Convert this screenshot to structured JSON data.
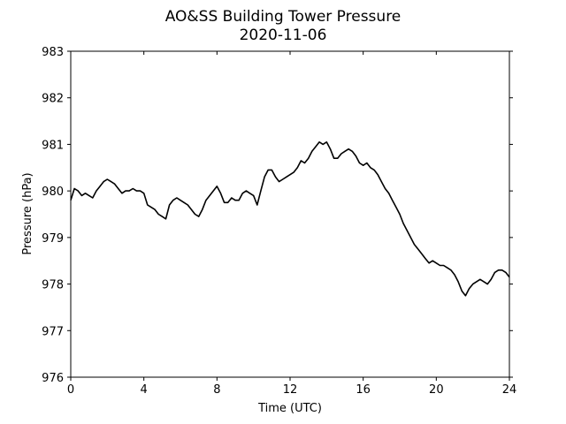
{
  "chart_data": {
    "type": "line",
    "title": "AO&SS Building Tower Pressure",
    "subtitle": "2020-11-06",
    "xlabel": "Time (UTC)",
    "ylabel": "Pressure (hPa)",
    "xlim": [
      0,
      24
    ],
    "ylim": [
      976,
      983
    ],
    "xticks": [
      0,
      4,
      8,
      12,
      16,
      20,
      24
    ],
    "yticks": [
      976,
      977,
      978,
      979,
      980,
      981,
      982,
      983
    ],
    "grid": false,
    "line_color": "#000000",
    "series": [
      {
        "x": [
          0,
          0.2,
          0.4,
          0.6,
          0.8,
          1.0,
          1.2,
          1.4,
          1.6,
          1.8,
          2.0,
          2.2,
          2.4,
          2.6,
          2.8,
          3.0,
          3.2,
          3.4,
          3.6,
          3.8,
          4.0,
          4.2,
          4.4,
          4.6,
          4.8,
          5.0,
          5.2,
          5.4,
          5.6,
          5.8,
          6.0,
          6.2,
          6.4,
          6.6,
          6.8,
          7.0,
          7.2,
          7.4,
          7.6,
          7.8,
          8.0,
          8.2,
          8.4,
          8.6,
          8.8,
          9.0,
          9.2,
          9.4,
          9.6,
          9.8,
          10.0,
          10.2,
          10.4,
          10.6,
          10.8,
          11.0,
          11.2,
          11.4,
          11.6,
          11.8,
          12.0,
          12.2,
          12.4,
          12.6,
          12.8,
          13.0,
          13.2,
          13.4,
          13.6,
          13.8,
          14.0,
          14.2,
          14.4,
          14.6,
          14.8,
          15.0,
          15.2,
          15.4,
          15.6,
          15.8,
          16.0,
          16.2,
          16.4,
          16.6,
          16.8,
          17.0,
          17.2,
          17.4,
          17.6,
          17.8,
          18.0,
          18.2,
          18.4,
          18.6,
          18.8,
          19.0,
          19.2,
          19.4,
          19.6,
          19.8,
          20.0,
          20.2,
          20.4,
          20.6,
          20.8,
          21.0,
          21.2,
          21.4,
          21.6,
          21.8,
          22.0,
          22.2,
          22.4,
          22.6,
          22.8,
          23.0,
          23.2,
          23.4,
          23.6,
          23.8,
          24.0
        ],
        "y": [
          979.8,
          980.05,
          980.0,
          979.9,
          979.95,
          979.9,
          979.85,
          980.0,
          980.1,
          980.2,
          980.25,
          980.2,
          980.15,
          980.05,
          979.95,
          980.0,
          980.0,
          980.05,
          980.0,
          980.0,
          979.95,
          979.7,
          979.65,
          979.6,
          979.5,
          979.45,
          979.4,
          979.7,
          979.8,
          979.85,
          979.8,
          979.75,
          979.7,
          979.6,
          979.5,
          979.45,
          979.6,
          979.8,
          979.9,
          980.0,
          980.1,
          979.95,
          979.75,
          979.75,
          979.85,
          979.8,
          979.8,
          979.95,
          980.0,
          979.95,
          979.9,
          979.7,
          980.0,
          980.3,
          980.45,
          980.45,
          980.3,
          980.2,
          980.25,
          980.3,
          980.35,
          980.4,
          980.5,
          980.65,
          980.6,
          980.7,
          980.85,
          980.95,
          981.05,
          981.0,
          981.05,
          980.9,
          980.7,
          980.7,
          980.8,
          980.85,
          980.9,
          980.85,
          980.75,
          980.6,
          980.55,
          980.6,
          980.5,
          980.45,
          980.35,
          980.2,
          980.05,
          979.95,
          979.8,
          979.65,
          979.5,
          979.3,
          979.15,
          979.0,
          978.85,
          978.75,
          978.65,
          978.55,
          978.45,
          978.5,
          978.45,
          978.4,
          978.4,
          978.35,
          978.3,
          978.2,
          978.05,
          977.85,
          977.75,
          977.9,
          978.0,
          978.05,
          978.1,
          978.05,
          978.0,
          978.1,
          978.25,
          978.3,
          978.3,
          978.25,
          978.15
        ]
      }
    ]
  }
}
